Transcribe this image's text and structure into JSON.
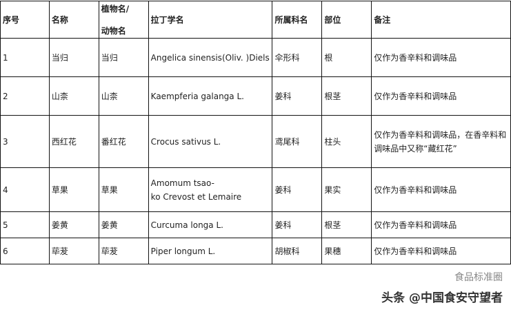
{
  "headers": [
    "序号",
    "名称",
    "植物名/",
    "动物名",
    "拉丁学名",
    "所属科名",
    "部位",
    "备注"
  ],
  "rows": [
    {
      "no": "1",
      "name": "当归",
      "species": "当归",
      "latin": "Angelica sinensis(Oliv. )Diels",
      "family": "伞形科",
      "part": "根",
      "note": "仅作为香辛料和调味品"
    },
    {
      "no": "2",
      "name": "山柰",
      "species": "山柰",
      "latin": "Kaempferia galanga L.",
      "family": "姜科",
      "part": "根茎",
      "note": "仅作为香辛料和调味品"
    },
    {
      "no": "3",
      "name": "西红花",
      "species": "番红花",
      "latin": "Crocus sativus L.",
      "family": "鸢尾科",
      "part": "柱头",
      "note": "仅作为香辛料和调味品，在香辛料和调味品中又称“藏红花”"
    },
    {
      "no": "4",
      "name": "草果",
      "species": "草果",
      "latin": "Amomum tsao-",
      "latin2": "ko Crevost et Lemaire",
      "family": "姜科",
      "part": "果实",
      "note": "仅作为香辛料和调味品"
    },
    {
      "no": "5",
      "name": "姜黄",
      "species": "姜黄",
      "latin": "Curcuma longa L.",
      "family": "姜科",
      "part": "根茎",
      "note": "仅作为香辛料和调味品"
    },
    {
      "no": "6",
      "name": "荜茇",
      "species": "荜茇",
      "latin": "Piper longum L.",
      "family": "胡椒科",
      "part": "果穗",
      "note": "仅作为香辛料和调味品"
    }
  ],
  "watermark": "头条 @中国食安守望者",
  "watermark2": "食品标准圈"
}
